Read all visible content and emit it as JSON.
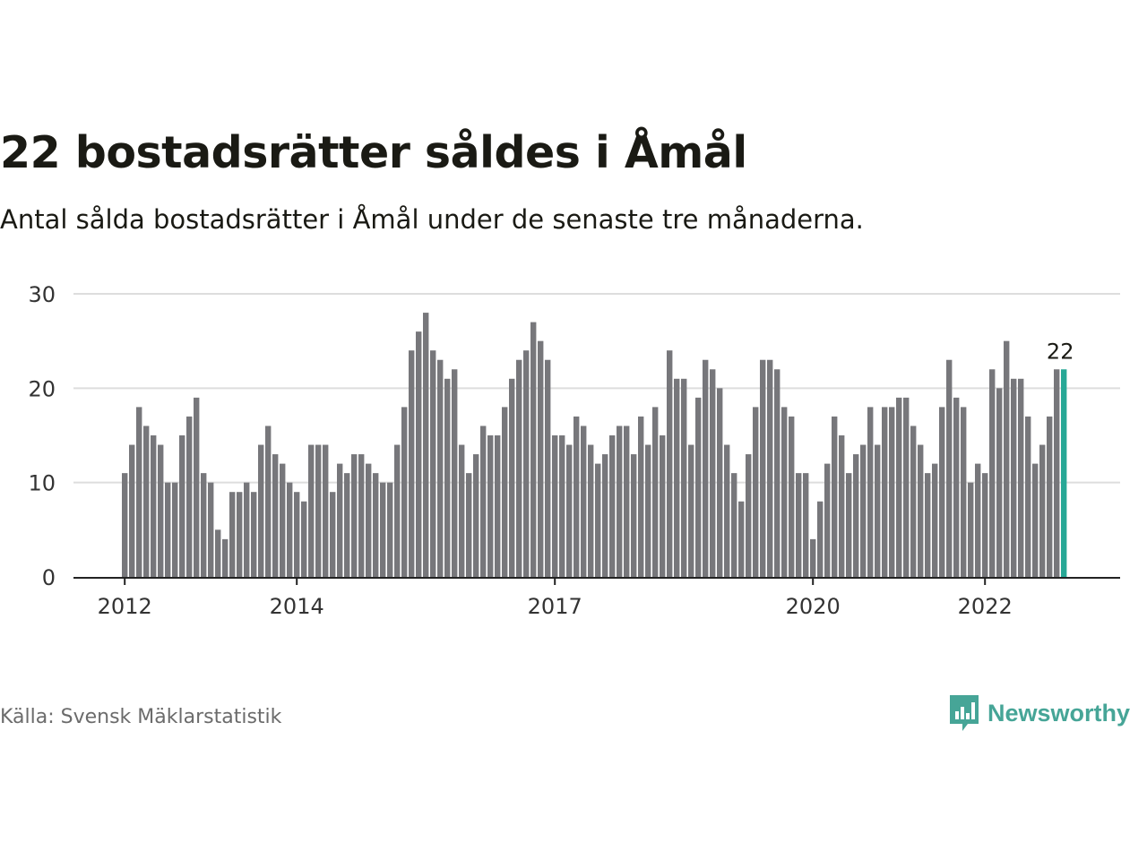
{
  "title": "22 bostadsrätter såldes i Åmål",
  "subtitle": "Antal sålda bostadsrätter i Åmål under de senaste tre månaderna.",
  "source": "Källa: Svensk Mäklarstatistik",
  "brand": {
    "name": "Newsworthy",
    "logo_icon": "bar-chart-speech-bubble-icon",
    "color": "#46a597"
  },
  "chart_data": {
    "type": "bar",
    "x_start": "2012-01",
    "interval": "month",
    "values": [
      11,
      14,
      18,
      16,
      15,
      14,
      10,
      10,
      15,
      17,
      19,
      11,
      10,
      5,
      4,
      9,
      9,
      10,
      9,
      14,
      16,
      13,
      12,
      10,
      9,
      8,
      14,
      14,
      14,
      9,
      12,
      11,
      13,
      13,
      12,
      11,
      10,
      10,
      14,
      18,
      24,
      26,
      28,
      24,
      23,
      21,
      22,
      14,
      11,
      13,
      16,
      15,
      15,
      18,
      21,
      23,
      24,
      27,
      25,
      23,
      15,
      15,
      14,
      17,
      16,
      14,
      12,
      13,
      15,
      16,
      16,
      13,
      17,
      14,
      18,
      15,
      24,
      21,
      21,
      14,
      19,
      23,
      22,
      20,
      14,
      11,
      8,
      13,
      18,
      23,
      23,
      22,
      18,
      17,
      11,
      11,
      4,
      8,
      12,
      17,
      15,
      11,
      13,
      14,
      18,
      14,
      18,
      18,
      19,
      19,
      16,
      14,
      11,
      12,
      18,
      23,
      19,
      18,
      10,
      12,
      11,
      22,
      20,
      25,
      21,
      21,
      17,
      12,
      14,
      17,
      22,
      22
    ],
    "highlight_last": true,
    "highlight_label": "22",
    "ylim": [
      0,
      30
    ],
    "yticks": [
      0,
      10,
      20,
      30
    ],
    "xticks": [
      {
        "label": "2012",
        "index": 0
      },
      {
        "label": "2014",
        "index": 24
      },
      {
        "label": "2017",
        "index": 60
      },
      {
        "label": "2020",
        "index": 96
      },
      {
        "label": "2022",
        "index": 120
      }
    ],
    "colors": {
      "bar": "#77777b",
      "highlight": "#27a896",
      "grid": "#dddddd",
      "axis": "#222222"
    },
    "grid": true
  }
}
